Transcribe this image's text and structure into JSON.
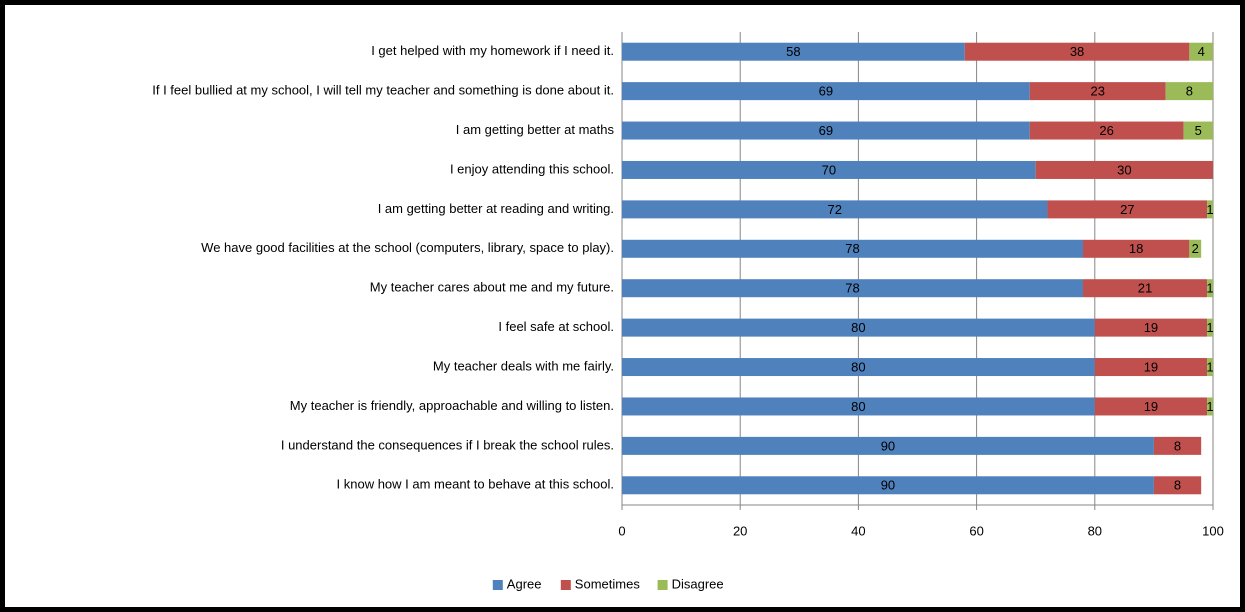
{
  "chart_data": {
    "type": "bar",
    "orientation": "horizontal",
    "stacked": true,
    "categories": [
      "I get helped with my homework if I need it.",
      "If I feel bullied at my school, I will tell my teacher and something is done about it.",
      "I am getting better at maths",
      "I enjoy attending this school.",
      "I am getting better at reading and writing.",
      "We have good facilities at the school (computers, library, space to play).",
      "My teacher cares about me and my future.",
      "I feel safe at school.",
      "My teacher deals with me fairly.",
      "My teacher is friendly, approachable and willing to listen.",
      "I understand the consequences if I break the school rules.",
      "I know how I am meant to behave at this school."
    ],
    "series": [
      {
        "name": "Agree",
        "color": "#4f81bd",
        "values": [
          58,
          69,
          69,
          70,
          72,
          78,
          78,
          80,
          80,
          80,
          90,
          90
        ]
      },
      {
        "name": "Sometimes",
        "color": "#c0504d",
        "values": [
          38,
          23,
          26,
          30,
          27,
          18,
          21,
          19,
          19,
          19,
          8,
          8
        ]
      },
      {
        "name": "Disagree",
        "color": "#9bbb59",
        "values": [
          4,
          8,
          5,
          null,
          1,
          2,
          1,
          1,
          1,
          1,
          null,
          null
        ]
      }
    ],
    "xlim": [
      0,
      100
    ],
    "xticks": [
      0,
      20,
      40,
      60,
      80,
      100
    ],
    "grid": true,
    "legend": "bottom"
  }
}
